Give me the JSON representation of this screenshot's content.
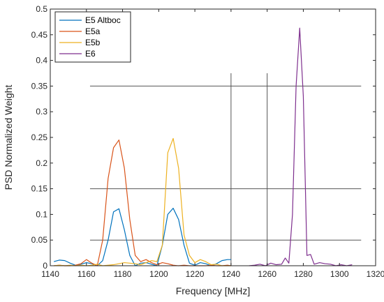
{
  "chart_data": {
    "type": "line",
    "xlabel": "Frequency [MHz]",
    "ylabel": "PSD Normalized Weight",
    "xlim": [
      1140,
      1320
    ],
    "ylim": [
      0,
      0.5
    ],
    "xticks": [
      1140,
      1160,
      1180,
      1200,
      1220,
      1240,
      1260,
      1280,
      1300,
      1320
    ],
    "yticks": [
      0,
      0.05,
      0.1,
      0.15,
      0.2,
      0.25,
      0.3,
      0.35,
      0.4,
      0.45,
      0.5
    ],
    "xtick_labels": [
      "1140",
      "1160",
      "1180",
      "1200",
      "1220",
      "1240",
      "1260",
      "1280",
      "1300",
      "1320"
    ],
    "ytick_labels": [
      "0",
      "0.05",
      "0.1",
      "0.15",
      "0.2",
      "0.25",
      "0.3",
      "0.35",
      "0.4",
      "0.45",
      "0.5"
    ],
    "legend_position": "top-left",
    "grid": false,
    "reference_lines": {
      "horizontal": [
        {
          "y": 0.35,
          "x_start": 1162,
          "x_end": 1312
        },
        {
          "y": 0.15,
          "x_start": 1162,
          "x_end": 1312
        },
        {
          "y": 0.05,
          "x_start": 1162,
          "x_end": 1312
        }
      ],
      "vertical": [
        {
          "x": 1240,
          "y_start": 0,
          "y_end": 0.375
        },
        {
          "x": 1260,
          "y_start": 0,
          "y_end": 0.375
        }
      ],
      "color": "#555555"
    },
    "series": [
      {
        "name": "E5 Altboc",
        "color": "#0072BD",
        "x": [
          1142,
          1145,
          1148,
          1151,
          1154,
          1157,
          1160,
          1163,
          1166,
          1169,
          1172,
          1175,
          1178,
          1181,
          1184,
          1187,
          1190,
          1193,
          1196,
          1199,
          1202,
          1205,
          1208,
          1211,
          1214,
          1217,
          1220,
          1223,
          1226,
          1229,
          1232,
          1235,
          1238,
          1240
        ],
        "y": [
          0.008,
          0.011,
          0.01,
          0.005,
          0.001,
          0.003,
          0.006,
          0.004,
          0.0,
          0.01,
          0.05,
          0.105,
          0.111,
          0.07,
          0.02,
          0.0,
          0.005,
          0.006,
          0.003,
          0.0,
          0.04,
          0.1,
          0.112,
          0.09,
          0.04,
          0.005,
          0.001,
          0.006,
          0.004,
          0.0,
          0.004,
          0.01,
          0.012,
          0.012
        ]
      },
      {
        "name": "E5a",
        "color": "#D95319",
        "x": [
          1142,
          1145,
          1148,
          1151,
          1154,
          1157,
          1160,
          1163,
          1166,
          1169,
          1172,
          1175,
          1178,
          1181,
          1184,
          1187,
          1190,
          1193,
          1196,
          1199,
          1202,
          1205,
          1208,
          1211,
          1214,
          1217,
          1220,
          1223,
          1226,
          1229,
          1232,
          1235,
          1238,
          1240
        ],
        "y": [
          0.0,
          0.001,
          0.0,
          0.0,
          0.001,
          0.004,
          0.012,
          0.005,
          0.0,
          0.05,
          0.17,
          0.23,
          0.245,
          0.19,
          0.09,
          0.02,
          0.008,
          0.012,
          0.006,
          0.002,
          0.006,
          0.004,
          0.001,
          0.0,
          0.001,
          0.0,
          0.0,
          0.0,
          0.0,
          0.001,
          0.0,
          0.0,
          0.001,
          0.0
        ]
      },
      {
        "name": "E5b",
        "color": "#EDB120",
        "x": [
          1142,
          1145,
          1148,
          1151,
          1154,
          1157,
          1160,
          1163,
          1166,
          1169,
          1172,
          1175,
          1178,
          1181,
          1184,
          1187,
          1190,
          1193,
          1196,
          1199,
          1202,
          1205,
          1208,
          1211,
          1214,
          1217,
          1220,
          1223,
          1226,
          1229,
          1232,
          1235,
          1238,
          1240
        ],
        "y": [
          0.0,
          0.001,
          0.0,
          0.001,
          0.0,
          0.001,
          0.0,
          0.001,
          0.003,
          0.0,
          0.001,
          0.002,
          0.004,
          0.006,
          0.005,
          0.004,
          0.002,
          0.006,
          0.01,
          0.008,
          0.04,
          0.22,
          0.248,
          0.19,
          0.06,
          0.02,
          0.006,
          0.012,
          0.008,
          0.002,
          0.003,
          0.0,
          0.0,
          0.0
        ]
      },
      {
        "name": "E6",
        "color": "#7E2F8E",
        "x": [
          1250,
          1253,
          1256,
          1259,
          1262,
          1265,
          1268,
          1270,
          1272,
          1274,
          1276,
          1278,
          1280,
          1282,
          1284,
          1286,
          1289,
          1292,
          1295,
          1298,
          1301,
          1304,
          1307
        ],
        "y": [
          0.0,
          0.001,
          0.003,
          0.0,
          0.005,
          0.002,
          0.003,
          0.015,
          0.005,
          0.1,
          0.35,
          0.463,
          0.33,
          0.02,
          0.022,
          0.003,
          0.006,
          0.004,
          0.003,
          0.0,
          0.002,
          0.0,
          0.002
        ]
      }
    ]
  }
}
